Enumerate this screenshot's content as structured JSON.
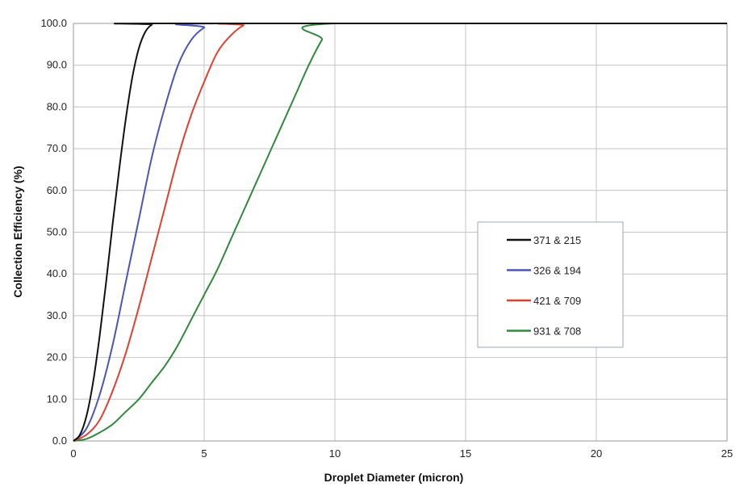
{
  "chart_data": {
    "type": "line",
    "xlabel": "Droplet Diameter (micron)",
    "ylabel": "Collection Efficiency (%)",
    "xlim": [
      0,
      25
    ],
    "ylim": [
      0,
      100
    ],
    "x_ticks": [
      "0",
      "5",
      "10",
      "15",
      "20",
      "25"
    ],
    "y_ticks": [
      "0.0",
      "10.0",
      "20.0",
      "30.0",
      "40.0",
      "50.0",
      "60.0",
      "70.0",
      "80.0",
      "90.0",
      "100.0"
    ],
    "grid": true,
    "legend_position": "center-right",
    "series": [
      {
        "name": "371 & 215",
        "color": "#111111",
        "x": [
          0,
          0.25,
          0.5,
          0.75,
          1.0,
          1.25,
          1.5,
          1.75,
          2.0,
          2.25,
          2.5,
          2.75,
          3.0,
          3.25,
          25
        ],
        "y": [
          0,
          1.5,
          6,
          14,
          25,
          38,
          52,
          65,
          77,
          87,
          94,
          98,
          99.7,
          100,
          100
        ]
      },
      {
        "name": "326 & 194",
        "color": "#4a55b8",
        "x": [
          0,
          0.5,
          1.0,
          1.5,
          2.0,
          2.5,
          3.0,
          3.5,
          4.0,
          4.5,
          5.0,
          5.5,
          25
        ],
        "y": [
          0,
          3,
          11,
          23,
          38,
          53,
          68,
          80,
          90,
          96,
          99,
          100,
          100
        ]
      },
      {
        "name": "421 & 709",
        "color": "#e04030",
        "x": [
          0,
          0.5,
          1.0,
          1.5,
          2.0,
          2.5,
          3.0,
          3.5,
          4.0,
          4.5,
          5.0,
          5.5,
          6.0,
          6.5,
          7.0,
          25
        ],
        "y": [
          0,
          1.5,
          5,
          12,
          21,
          32,
          44,
          56,
          68,
          78,
          86,
          93,
          97,
          99.5,
          100,
          100
        ]
      },
      {
        "name": "931 & 708",
        "color": "#2f8a3c",
        "x": [
          0,
          0.5,
          1.0,
          1.5,
          2.0,
          2.5,
          3.0,
          3.5,
          4.0,
          4.5,
          5.0,
          5.5,
          6.0,
          6.5,
          7.0,
          7.5,
          8.0,
          8.5,
          9.0,
          9.5,
          10.0,
          25
        ],
        "y": [
          0,
          0.5,
          2,
          4,
          7,
          10,
          14,
          18,
          23,
          29,
          35,
          41,
          48,
          55,
          62,
          69,
          76,
          83,
          90,
          96,
          100,
          100
        ]
      }
    ]
  }
}
